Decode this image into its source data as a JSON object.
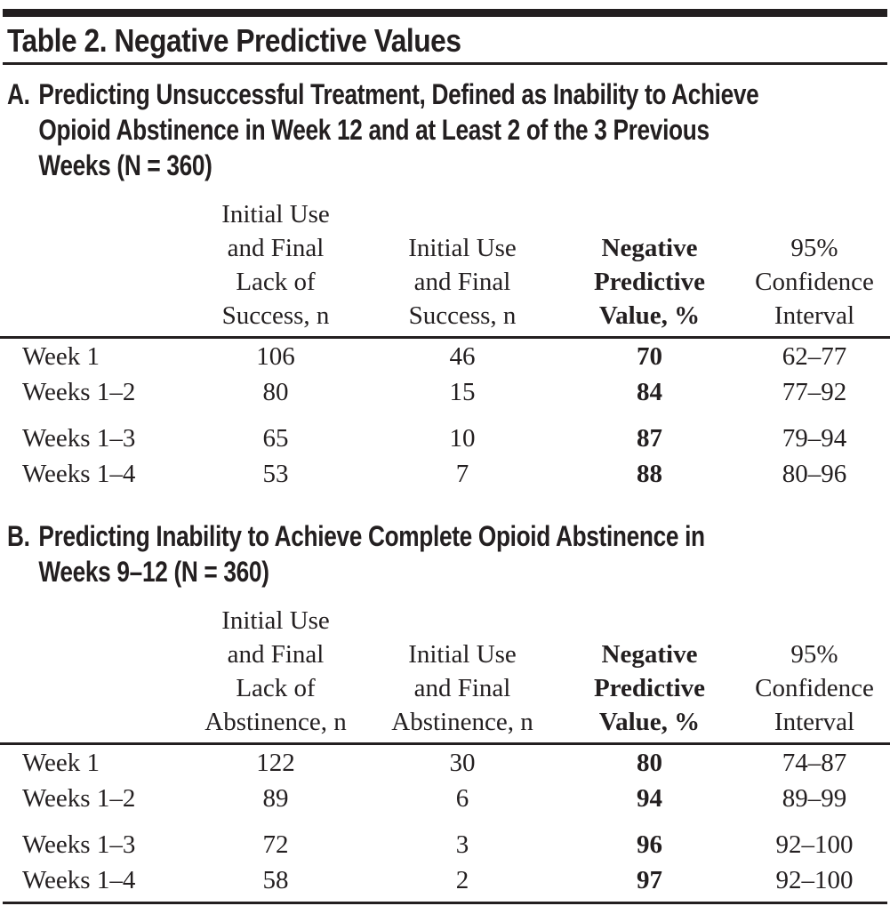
{
  "ink_color": "#231f20",
  "title": "Table 2. Negative Predictive Values",
  "sections": [
    {
      "label": "A.",
      "heading": "Predicting Unsuccessful Treatment, Defined as Inability to Achieve\nOpioid Abstinence in Week 12 and at Least 2 of the 3 Previous\nWeeks (N = 360)",
      "columns": [
        "",
        "Initial Use\nand Final\nLack of\nSuccess, n",
        "Initial Use\nand Final\nSuccess, n",
        "Negative\nPredictive\nValue, %",
        "95%\nConfidence\nInterval"
      ],
      "rows": [
        {
          "label": "Week 1",
          "values": [
            "106",
            "46",
            "70",
            "62–77"
          ]
        },
        {
          "label": "Weeks 1–2",
          "values": [
            "80",
            "15",
            "84",
            "77–92"
          ]
        },
        {
          "label": "Weeks 1–3",
          "values": [
            "65",
            "10",
            "87",
            "79–94"
          ]
        },
        {
          "label": "Weeks 1–4",
          "values": [
            "53",
            "7",
            "88",
            "80–96"
          ]
        }
      ]
    },
    {
      "label": "B.",
      "heading": "Predicting Inability to Achieve Complete Opioid Abstinence in\nWeeks 9–12 (N = 360)",
      "columns": [
        "",
        "Initial Use\nand Final\nLack of\nAbstinence, n",
        "Initial Use\nand Final\nAbstinence, n",
        "Negative\nPredictive\nValue, %",
        "95%\nConfidence\nInterval"
      ],
      "rows": [
        {
          "label": "Week 1",
          "values": [
            "122",
            "30",
            "80",
            "74–87"
          ]
        },
        {
          "label": "Weeks 1–2",
          "values": [
            "89",
            "6",
            "94",
            "89–99"
          ]
        },
        {
          "label": "Weeks 1–3",
          "values": [
            "72",
            "3",
            "96",
            "92–100"
          ]
        },
        {
          "label": "Weeks 1–4",
          "values": [
            "58",
            "2",
            "97",
            "92–100"
          ]
        }
      ]
    }
  ]
}
